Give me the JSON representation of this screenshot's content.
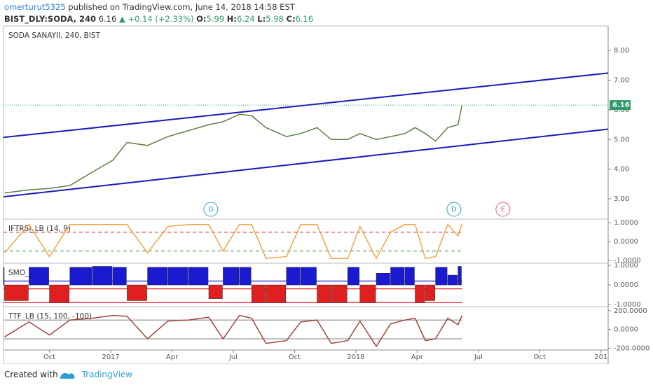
{
  "header": {
    "author": "omerturut5325",
    "published": "published on TradingView.com, June 14, 2018 14:58 EST",
    "symbol": "BIST_DLY:SODA, 240",
    "last": "6.16",
    "change": "▲ +0.14 (+2.33%)",
    "open_label": "O:",
    "open": "5.99",
    "high_label": "H:",
    "high": "6.24",
    "low_label": "L:",
    "low": "5.98",
    "close_label": "C:",
    "close": "6.16"
  },
  "chart_data": [
    {
      "type": "line",
      "title": "SODA SANAYII, 240, BIST",
      "x": [
        0.8,
        2.0,
        3.0,
        4.0,
        5.1,
        6.1,
        6.8,
        7.8,
        8.8,
        9.8,
        10.8,
        11.5,
        12.3,
        12.9,
        13.6,
        14.6,
        15.3,
        16.1,
        16.8,
        17.6,
        18.2,
        19.0,
        19.7,
        20.4,
        20.9,
        21.4,
        21.9,
        22.5,
        23.0,
        23.2
      ],
      "series": [
        {
          "color": "#5d7f45",
          "values": [
            3.2,
            3.3,
            3.35,
            3.45,
            3.9,
            4.3,
            4.9,
            4.8,
            5.1,
            5.3,
            5.5,
            5.6,
            5.85,
            5.8,
            5.4,
            5.1,
            5.2,
            5.4,
            5.0,
            5.0,
            5.2,
            5.0,
            5.1,
            5.2,
            5.4,
            5.2,
            4.95,
            5.4,
            5.5,
            6.16
          ]
        }
      ],
      "channel": [
        {
          "x": [
            0.75,
            30.35
          ],
          "values": [
            5.07,
            7.24
          ],
          "color": "#1a1ab8"
        },
        {
          "x": [
            0.75,
            30.35
          ],
          "values": [
            3.07,
            5.35
          ],
          "color": "#1a1ab8"
        }
      ],
      "last_price": {
        "value": 6.16,
        "label": "6.16",
        "color": "#2e9c6a"
      },
      "events": [
        {
          "x": 10.9,
          "label": "D",
          "color": "#2a9fd6"
        },
        {
          "x": 22.8,
          "label": "D",
          "color": "#2a9fd6"
        },
        {
          "x": 25.2,
          "label": "E",
          "color": "#e05a7a"
        }
      ],
      "xlim": [
        0.75,
        30.35
      ],
      "xticks": [
        {
          "value": 3,
          "label": "Oct"
        },
        {
          "value": 6,
          "label": "2017"
        },
        {
          "value": 9,
          "label": "Apr"
        },
        {
          "value": 12,
          "label": "Jul"
        },
        {
          "value": 15,
          "label": "Oct"
        },
        {
          "value": 18,
          "label": "2018"
        },
        {
          "value": 21,
          "label": "Apr"
        },
        {
          "value": 24,
          "label": "Jul"
        },
        {
          "value": 27,
          "label": "Oct"
        },
        {
          "value": 30,
          "label": "201"
        }
      ],
      "ylim": [
        2.34,
        8.83
      ],
      "yticks": [
        {
          "value": 3,
          "label": "3.00"
        },
        {
          "value": 4,
          "label": "4.00"
        },
        {
          "value": 5,
          "label": "5.00"
        },
        {
          "value": 6,
          "label": "6.00"
        },
        {
          "value": 7,
          "label": "7.00"
        },
        {
          "value": 8,
          "label": "8.00"
        }
      ]
    },
    {
      "type": "line",
      "title": "IFTRSI_LB (14, 9)",
      "color": "#f5a347",
      "values": [
        -0.6,
        0.9,
        -0.8,
        0.9,
        0.9,
        0.9,
        0.9,
        -0.6,
        0.8,
        0.9,
        0.9,
        -0.5,
        0.9,
        0.9,
        -0.9,
        -0.8,
        0.9,
        0.9,
        -0.9,
        -0.9,
        0.8,
        -0.9,
        0.5,
        0.9,
        0.9,
        -0.9,
        -0.8,
        0.9,
        0.3,
        0.95
      ],
      "levels": [
        {
          "value": 0.5,
          "color": "#e04040",
          "dash": true
        },
        {
          "value": -0.5,
          "color": "#3a9a3a",
          "dash": true
        }
      ],
      "ylim": [
        -1.11,
        1.19
      ],
      "yticks": [
        {
          "value": 1,
          "label": "1.0000"
        },
        {
          "value": 0,
          "label": "0.0000"
        },
        {
          "value": -1,
          "label": "-1.0000"
        }
      ]
    },
    {
      "type": "bar",
      "title": "SMO_LB",
      "colors": [
        "#1a1ad0",
        "#e02020"
      ],
      "values": [
        0.9,
        -0.8,
        0.9,
        -0.9,
        0.9,
        0.95,
        0.9,
        -0.8,
        0.9,
        0.9,
        0.9,
        -0.7,
        0.9,
        0.9,
        -0.9,
        -0.9,
        0.9,
        0.9,
        -0.9,
        -0.9,
        0.9,
        -0.9,
        0.6,
        0.9,
        0.9,
        -0.9,
        -0.8,
        0.9,
        0.5,
        0.95
      ],
      "levels": [
        {
          "value": 0.2,
          "color": "#1a1ad0",
          "dash": false
        },
        {
          "value": -0.2,
          "color": "#e02020",
          "dash": false
        },
        {
          "value": -0.9,
          "color": "#e02020",
          "dash": false
        }
      ],
      "ylim": [
        -1.07,
        1.11
      ],
      "yticks": [
        {
          "value": 1,
          "label": "1.0000"
        },
        {
          "value": 0,
          "label": "0.0000"
        },
        {
          "value": -1,
          "label": "-1.0000"
        }
      ]
    },
    {
      "type": "line",
      "title": "TTF_LB (15, 100, -100)",
      "color": "#a0443a",
      "values": [
        -80,
        80,
        -60,
        100,
        120,
        150,
        140,
        -100,
        90,
        100,
        130,
        -100,
        150,
        120,
        -150,
        -120,
        80,
        100,
        -150,
        -120,
        90,
        -180,
        60,
        100,
        120,
        -120,
        -100,
        120,
        50,
        150
      ],
      "levels": [
        {
          "value": 100,
          "color": "#999",
          "dash": false
        },
        {
          "value": -100,
          "color": "#999",
          "dash": false
        }
      ],
      "ylim": [
        -220,
        244
      ],
      "yticks": [
        {
          "value": 200,
          "label": "200.0000"
        },
        {
          "value": 0,
          "label": "0.0000"
        },
        {
          "value": -200,
          "label": "-200.0000"
        }
      ]
    }
  ],
  "footer": {
    "created": "Created with",
    "brand": "TradingView"
  }
}
